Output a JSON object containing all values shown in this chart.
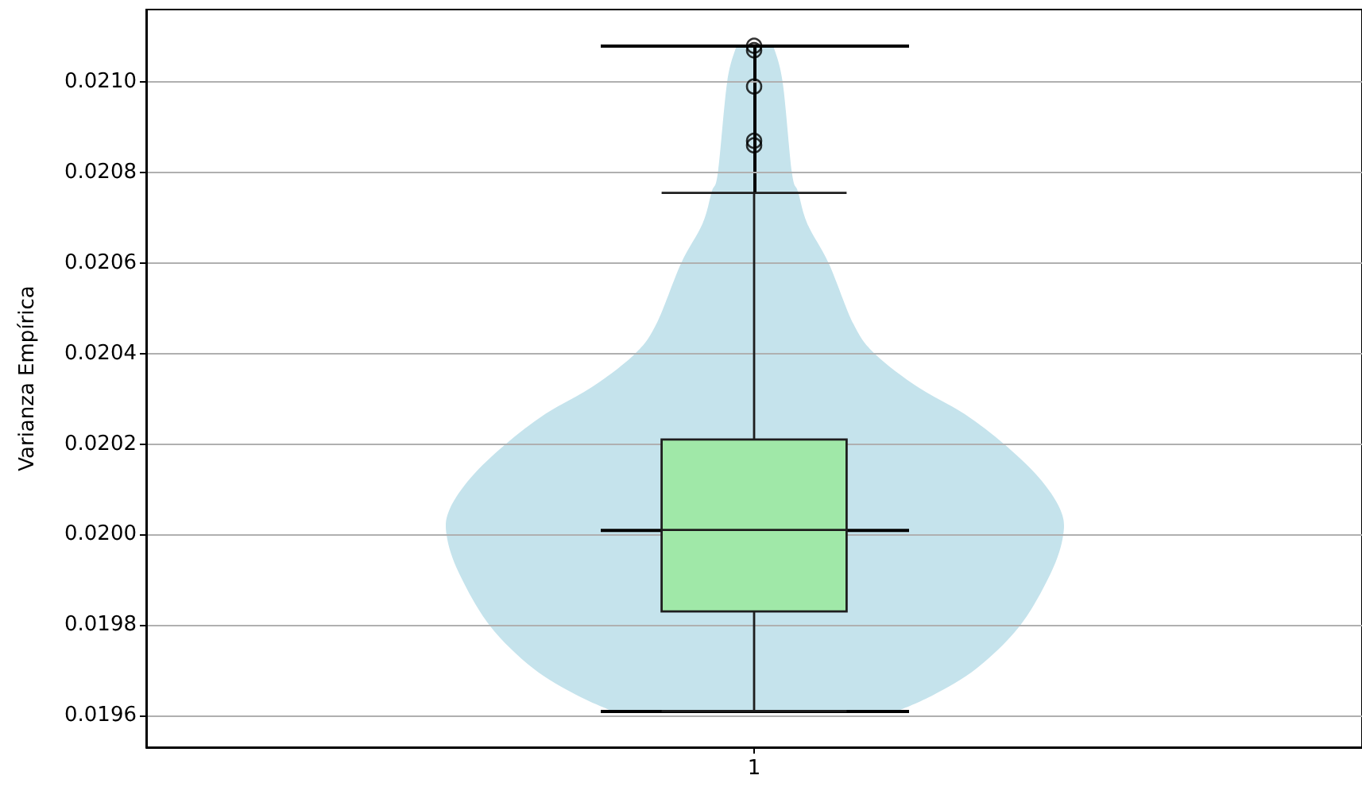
{
  "chart_data": {
    "type": "box",
    "ylabel": "Varianza Empírica",
    "categories": [
      "1"
    ],
    "color": "#a0e8a8",
    "boxes": [
      {
        "low": 0.01961,
        "q1": 0.01983,
        "median": 0.02001,
        "q3": 0.02021,
        "high": 0.020755,
        "outliers": [
          0.02108,
          0.02107,
          0.02099,
          0.02087,
          0.02086
        ]
      }
    ],
    "ylim": [
      0.01953,
      0.02116
    ],
    "yticks": [
      0.0196,
      0.0198,
      {
        "value": 0.02,
        "label": "0.0200"
      },
      0.0202,
      0.0204,
      0.0206,
      0.0208,
      {
        "value": 0.021,
        "label": "0.0210"
      }
    ],
    "grid": "y"
  }
}
